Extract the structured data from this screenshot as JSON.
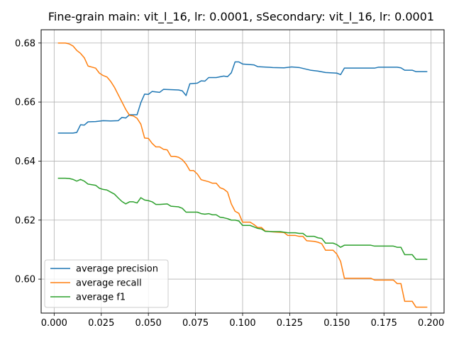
{
  "chart_data": {
    "type": "line",
    "title": "Fine-grain main: vit_l_16, lr: 0.0001, sSecondary: vit_l_16, lr: 0.0001",
    "xlabel": "",
    "ylabel": "",
    "xlim": [
      -0.0069,
      0.2069
    ],
    "ylim": [
      0.5885,
      0.6845
    ],
    "grid": true,
    "legend_position": "lower-left",
    "x_ticks": [
      0.0,
      0.025,
      0.05,
      0.075,
      0.1,
      0.125,
      0.15,
      0.175,
      0.2
    ],
    "x_tick_labels": [
      "0.000",
      "0.025",
      "0.050",
      "0.075",
      "0.100",
      "0.125",
      "0.150",
      "0.175",
      "0.200"
    ],
    "y_ticks": [
      0.6,
      0.62,
      0.64,
      0.66,
      0.68
    ],
    "y_tick_labels": [
      "0.60",
      "0.62",
      "0.64",
      "0.66",
      "0.68"
    ],
    "series": [
      {
        "name": "average precision",
        "color": "#1f77b4",
        "points": [
          [
            0.002,
            0.6495
          ],
          [
            0.006,
            0.6495
          ],
          [
            0.01,
            0.6495
          ],
          [
            0.012,
            0.6497
          ],
          [
            0.014,
            0.6523
          ],
          [
            0.016,
            0.6522
          ],
          [
            0.018,
            0.6533
          ],
          [
            0.022,
            0.6534
          ],
          [
            0.026,
            0.6537
          ],
          [
            0.03,
            0.6536
          ],
          [
            0.034,
            0.6537
          ],
          [
            0.036,
            0.6548
          ],
          [
            0.038,
            0.6546
          ],
          [
            0.04,
            0.6557
          ],
          [
            0.044,
            0.6557
          ],
          [
            0.046,
            0.6598
          ],
          [
            0.048,
            0.6627
          ],
          [
            0.05,
            0.6626
          ],
          [
            0.052,
            0.6636
          ],
          [
            0.056,
            0.6633
          ],
          [
            0.058,
            0.6643
          ],
          [
            0.066,
            0.6641
          ],
          [
            0.068,
            0.6638
          ],
          [
            0.07,
            0.6622
          ],
          [
            0.072,
            0.6662
          ],
          [
            0.076,
            0.6664
          ],
          [
            0.078,
            0.6672
          ],
          [
            0.08,
            0.6671
          ],
          [
            0.082,
            0.6683
          ],
          [
            0.086,
            0.6683
          ],
          [
            0.09,
            0.6688
          ],
          [
            0.092,
            0.6686
          ],
          [
            0.094,
            0.6699
          ],
          [
            0.096,
            0.6736
          ],
          [
            0.098,
            0.6736
          ],
          [
            0.1,
            0.6729
          ],
          [
            0.106,
            0.6726
          ],
          [
            0.108,
            0.672
          ],
          [
            0.116,
            0.6717
          ],
          [
            0.122,
            0.6716
          ],
          [
            0.126,
            0.6719
          ],
          [
            0.13,
            0.6717
          ],
          [
            0.134,
            0.6711
          ],
          [
            0.136,
            0.6708
          ],
          [
            0.14,
            0.6705
          ],
          [
            0.144,
            0.67
          ],
          [
            0.15,
            0.6698
          ],
          [
            0.152,
            0.6693
          ],
          [
            0.154,
            0.6715
          ],
          [
            0.17,
            0.6715
          ],
          [
            0.172,
            0.6718
          ],
          [
            0.182,
            0.6718
          ],
          [
            0.184,
            0.6716
          ],
          [
            0.186,
            0.6708
          ],
          [
            0.19,
            0.6708
          ],
          [
            0.192,
            0.6703
          ],
          [
            0.198,
            0.6703
          ]
        ]
      },
      {
        "name": "average recall",
        "color": "#ff7f0e",
        "points": [
          [
            0.002,
            0.68
          ],
          [
            0.006,
            0.68
          ],
          [
            0.008,
            0.6797
          ],
          [
            0.01,
            0.679
          ],
          [
            0.012,
            0.6775
          ],
          [
            0.014,
            0.6765
          ],
          [
            0.016,
            0.675
          ],
          [
            0.018,
            0.6722
          ],
          [
            0.022,
            0.6715
          ],
          [
            0.024,
            0.6698
          ],
          [
            0.026,
            0.669
          ],
          [
            0.028,
            0.6685
          ],
          [
            0.03,
            0.667
          ],
          [
            0.032,
            0.665
          ],
          [
            0.034,
            0.6625
          ],
          [
            0.036,
            0.66
          ],
          [
            0.038,
            0.6575
          ],
          [
            0.04,
            0.6555
          ],
          [
            0.042,
            0.6553
          ],
          [
            0.044,
            0.6545
          ],
          [
            0.046,
            0.6525
          ],
          [
            0.048,
            0.6478
          ],
          [
            0.05,
            0.6477
          ],
          [
            0.052,
            0.646
          ],
          [
            0.054,
            0.6448
          ],
          [
            0.056,
            0.6448
          ],
          [
            0.058,
            0.644
          ],
          [
            0.06,
            0.6438
          ],
          [
            0.062,
            0.6416
          ],
          [
            0.064,
            0.6416
          ],
          [
            0.066,
            0.6413
          ],
          [
            0.068,
            0.6405
          ],
          [
            0.07,
            0.639
          ],
          [
            0.072,
            0.6368
          ],
          [
            0.074,
            0.6368
          ],
          [
            0.076,
            0.6356
          ],
          [
            0.078,
            0.6337
          ],
          [
            0.082,
            0.633
          ],
          [
            0.084,
            0.6325
          ],
          [
            0.086,
            0.6325
          ],
          [
            0.088,
            0.631
          ],
          [
            0.09,
            0.6305
          ],
          [
            0.092,
            0.6295
          ],
          [
            0.094,
            0.6255
          ],
          [
            0.096,
            0.623
          ],
          [
            0.098,
            0.6223
          ],
          [
            0.1,
            0.6193
          ],
          [
            0.104,
            0.6193
          ],
          [
            0.106,
            0.6185
          ],
          [
            0.108,
            0.6175
          ],
          [
            0.11,
            0.6175
          ],
          [
            0.112,
            0.6163
          ],
          [
            0.114,
            0.6162
          ],
          [
            0.116,
            0.616
          ],
          [
            0.122,
            0.6158
          ],
          [
            0.124,
            0.6148
          ],
          [
            0.128,
            0.6148
          ],
          [
            0.13,
            0.6145
          ],
          [
            0.132,
            0.6145
          ],
          [
            0.134,
            0.613
          ],
          [
            0.138,
            0.6128
          ],
          [
            0.14,
            0.6125
          ],
          [
            0.142,
            0.612
          ],
          [
            0.144,
            0.6098
          ],
          [
            0.148,
            0.6098
          ],
          [
            0.15,
            0.6085
          ],
          [
            0.152,
            0.606
          ],
          [
            0.154,
            0.6003
          ],
          [
            0.168,
            0.6003
          ],
          [
            0.17,
            0.5997
          ],
          [
            0.18,
            0.5997
          ],
          [
            0.182,
            0.5985
          ],
          [
            0.184,
            0.5985
          ],
          [
            0.186,
            0.5925
          ],
          [
            0.19,
            0.5925
          ],
          [
            0.192,
            0.5905
          ],
          [
            0.198,
            0.5905
          ]
        ]
      },
      {
        "name": "average f1",
        "color": "#2ca02c",
        "points": [
          [
            0.002,
            0.6342
          ],
          [
            0.006,
            0.6342
          ],
          [
            0.008,
            0.6341
          ],
          [
            0.01,
            0.6338
          ],
          [
            0.012,
            0.6332
          ],
          [
            0.014,
            0.6338
          ],
          [
            0.016,
            0.6332
          ],
          [
            0.018,
            0.6322
          ],
          [
            0.02,
            0.632
          ],
          [
            0.022,
            0.6318
          ],
          [
            0.024,
            0.6308
          ],
          [
            0.026,
            0.6304
          ],
          [
            0.028,
            0.6302
          ],
          [
            0.03,
            0.6295
          ],
          [
            0.032,
            0.6288
          ],
          [
            0.034,
            0.6275
          ],
          [
            0.036,
            0.6263
          ],
          [
            0.038,
            0.6255
          ],
          [
            0.04,
            0.6262
          ],
          [
            0.042,
            0.6262
          ],
          [
            0.044,
            0.6258
          ],
          [
            0.046,
            0.6276
          ],
          [
            0.048,
            0.6268
          ],
          [
            0.05,
            0.6266
          ],
          [
            0.052,
            0.6262
          ],
          [
            0.054,
            0.6253
          ],
          [
            0.056,
            0.6253
          ],
          [
            0.06,
            0.6255
          ],
          [
            0.062,
            0.6247
          ],
          [
            0.066,
            0.6245
          ],
          [
            0.068,
            0.624
          ],
          [
            0.07,
            0.6227
          ],
          [
            0.076,
            0.6227
          ],
          [
            0.078,
            0.6222
          ],
          [
            0.08,
            0.622
          ],
          [
            0.082,
            0.6222
          ],
          [
            0.084,
            0.6218
          ],
          [
            0.086,
            0.6218
          ],
          [
            0.088,
            0.621
          ],
          [
            0.09,
            0.6208
          ],
          [
            0.092,
            0.6205
          ],
          [
            0.094,
            0.62
          ],
          [
            0.096,
            0.62
          ],
          [
            0.098,
            0.6197
          ],
          [
            0.1,
            0.6182
          ],
          [
            0.104,
            0.6182
          ],
          [
            0.106,
            0.6177
          ],
          [
            0.108,
            0.6172
          ],
          [
            0.11,
            0.617
          ],
          [
            0.112,
            0.6162
          ],
          [
            0.116,
            0.6161
          ],
          [
            0.12,
            0.6161
          ],
          [
            0.124,
            0.6157
          ],
          [
            0.128,
            0.6157
          ],
          [
            0.13,
            0.6155
          ],
          [
            0.132,
            0.6155
          ],
          [
            0.134,
            0.6145
          ],
          [
            0.138,
            0.6145
          ],
          [
            0.14,
            0.614
          ],
          [
            0.142,
            0.6138
          ],
          [
            0.144,
            0.6122
          ],
          [
            0.148,
            0.6122
          ],
          [
            0.15,
            0.6117
          ],
          [
            0.152,
            0.6108
          ],
          [
            0.154,
            0.6115
          ],
          [
            0.168,
            0.6115
          ],
          [
            0.17,
            0.6112
          ],
          [
            0.18,
            0.6112
          ],
          [
            0.182,
            0.6108
          ],
          [
            0.184,
            0.6108
          ],
          [
            0.186,
            0.6083
          ],
          [
            0.19,
            0.6083
          ],
          [
            0.192,
            0.6067
          ],
          [
            0.198,
            0.6067
          ]
        ]
      }
    ]
  }
}
